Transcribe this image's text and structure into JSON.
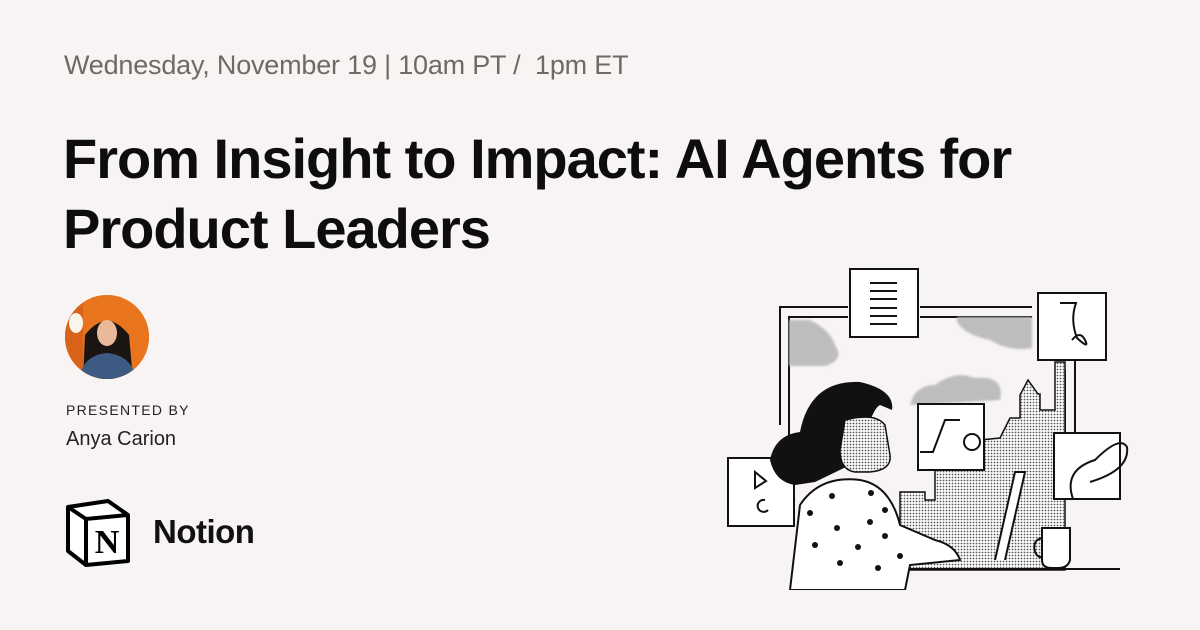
{
  "event": {
    "date_time": "Wednesday, November 19 | 10am PT /  1pm ET",
    "title": "From Insight to Impact: AI Agents for Product Leaders"
  },
  "presenter": {
    "label": "PRESENTED BY",
    "name": "Anya Carion",
    "avatar_bg": "#e8741e"
  },
  "brand": {
    "name": "Notion",
    "logo_letter": "N"
  }
}
